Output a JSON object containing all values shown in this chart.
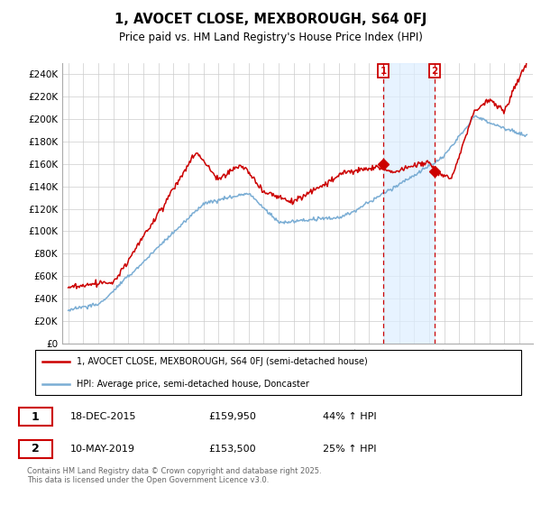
{
  "title": "1, AVOCET CLOSE, MEXBOROUGH, S64 0FJ",
  "subtitle": "Price paid vs. HM Land Registry's House Price Index (HPI)",
  "ylim": [
    0,
    250000
  ],
  "yticks": [
    0,
    20000,
    40000,
    60000,
    80000,
    100000,
    120000,
    140000,
    160000,
    180000,
    200000,
    220000,
    240000
  ],
  "year_start": 1995,
  "year_end": 2025,
  "red_color": "#cc0000",
  "blue_color": "#7aadd4",
  "shade_color": "#ddeeff",
  "dashed_color": "#cc0000",
  "grid_color": "#cccccc",
  "sale1_year": 2015.96,
  "sale1_price": 159950,
  "sale1_label": "1",
  "sale2_year": 2019.36,
  "sale2_price": 153500,
  "sale2_label": "2",
  "legend_entry1": "1, AVOCET CLOSE, MEXBOROUGH, S64 0FJ (semi-detached house)",
  "legend_entry2": "HPI: Average price, semi-detached house, Doncaster",
  "table_row1": [
    "1",
    "18-DEC-2015",
    "£159,950",
    "44% ↑ HPI"
  ],
  "table_row2": [
    "2",
    "10-MAY-2019",
    "£153,500",
    "25% ↑ HPI"
  ],
  "footer": "Contains HM Land Registry data © Crown copyright and database right 2025.\nThis data is licensed under the Open Government Licence v3.0."
}
